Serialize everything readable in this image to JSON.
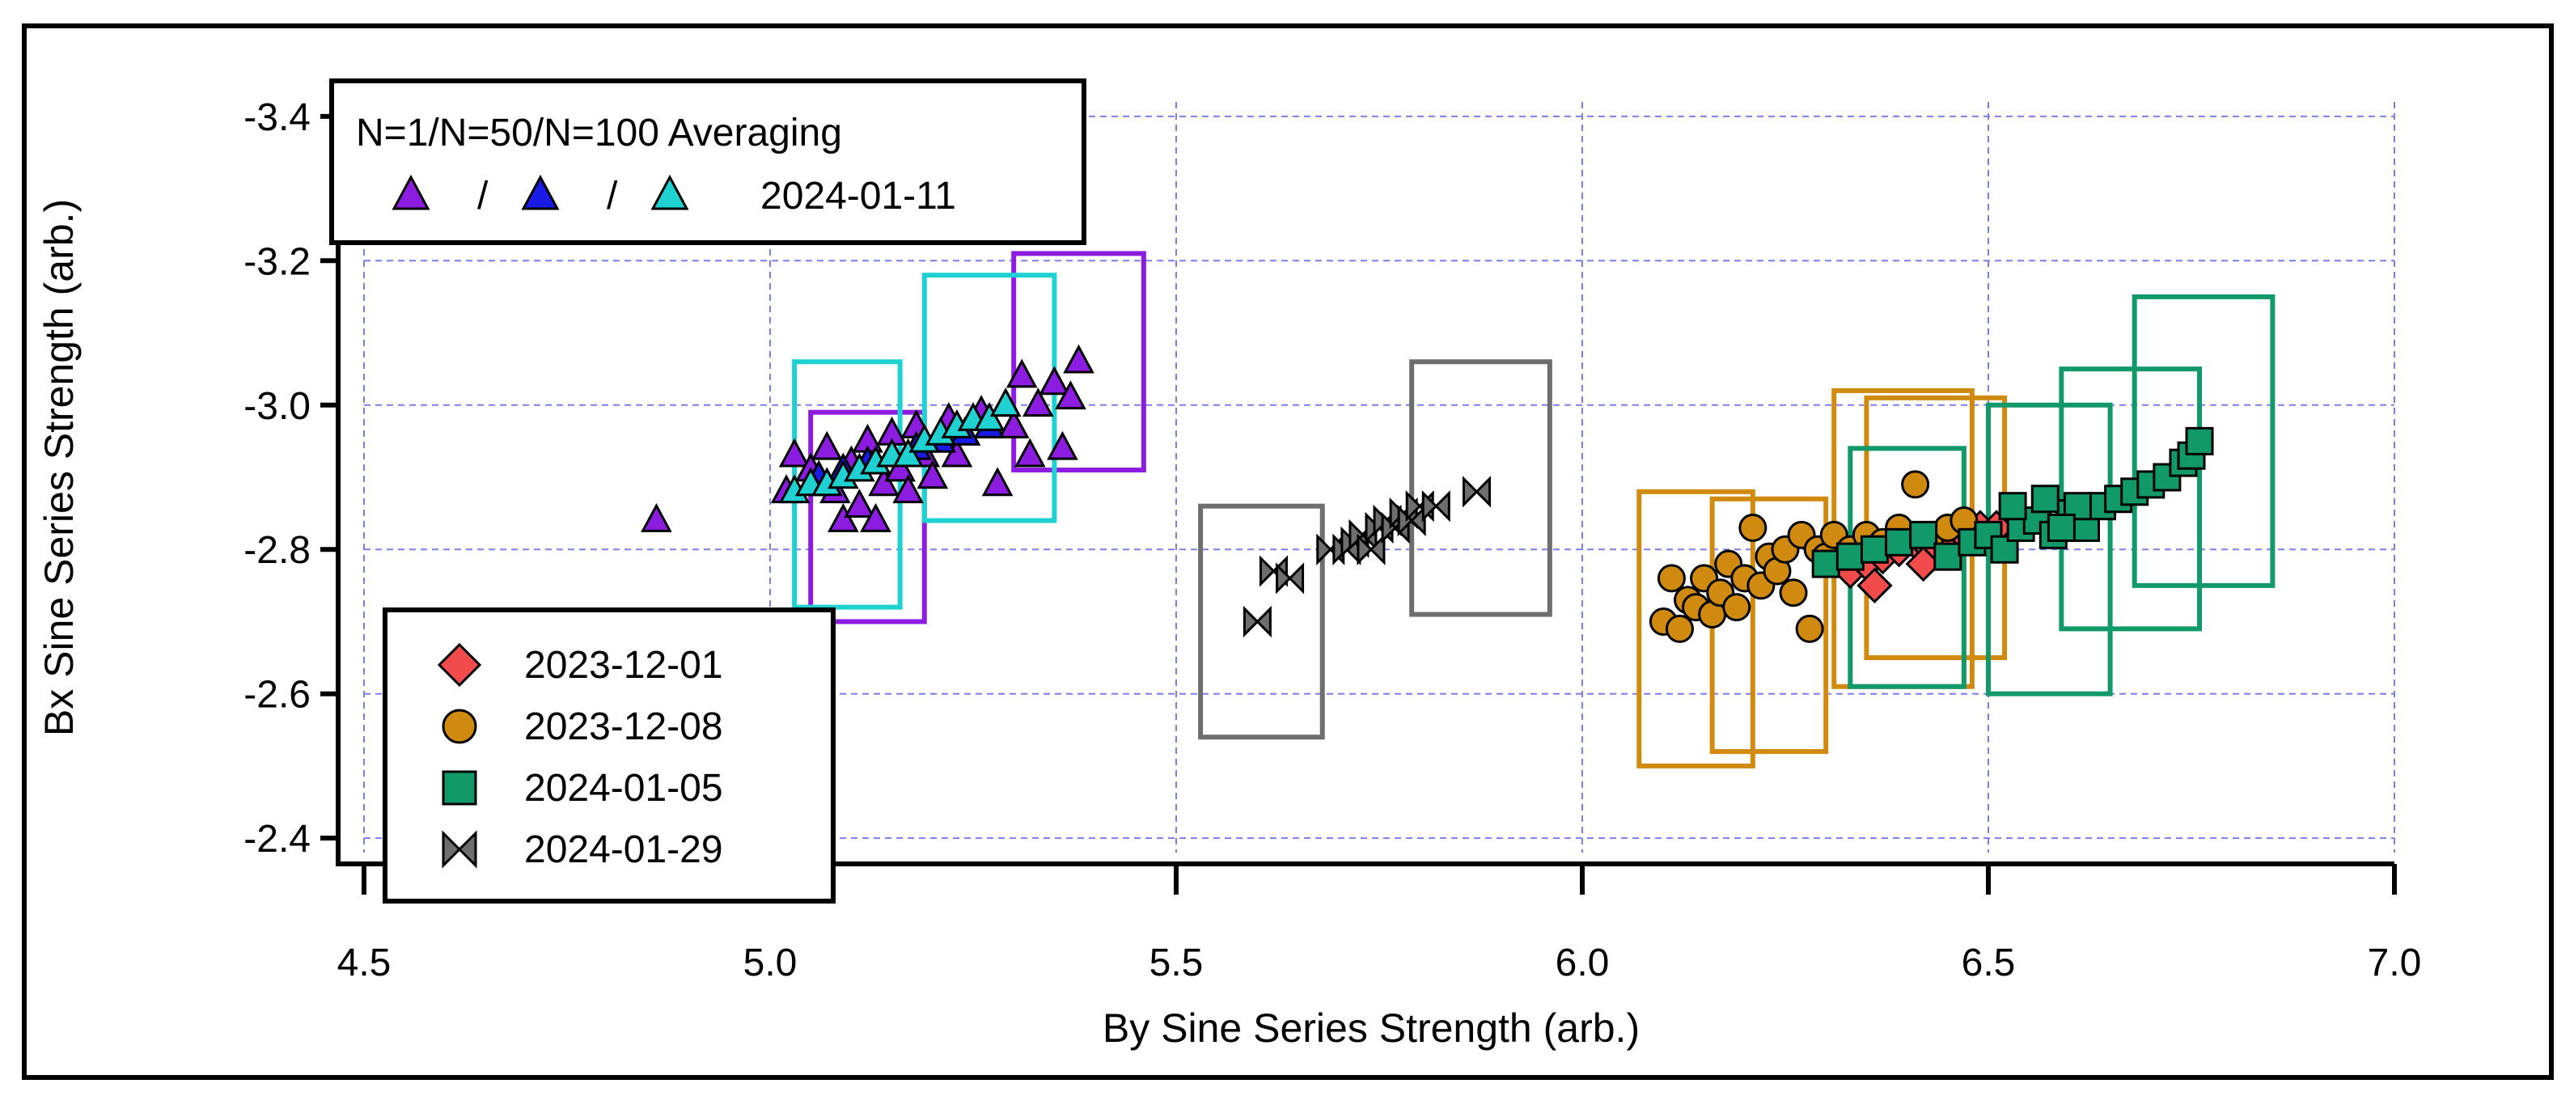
{
  "chart_data": {
    "type": "scatter",
    "title": "",
    "xlabel": "By Sine Series Strength (arb.)",
    "ylabel": "Bx Sine Series Strength (arb.)",
    "xlim": [
      4.5,
      7.0
    ],
    "ylim": [
      -2.38,
      -3.42
    ],
    "y_axis_reversed": true,
    "grid": true,
    "xticks": [
      4.5,
      5.0,
      5.5,
      6.0,
      6.5,
      7.0
    ],
    "xtick_labels": [
      "4.5",
      "5.0",
      "5.5",
      "6.0",
      "6.5",
      "7.0"
    ],
    "yticks": [
      -2.4,
      -2.6,
      -2.8,
      -3.0,
      -3.2,
      -3.4
    ],
    "ytick_labels": [
      "-2.4",
      "-2.6",
      "-2.8",
      "-3.0",
      "-3.2",
      "-3.4"
    ],
    "legend_top": {
      "title": "N=1/N=50/N=100 Averaging",
      "separator": "/",
      "label": "2024-01-11",
      "position": "top-left"
    },
    "legend_bottom": {
      "position": "bottom-left",
      "entries": [
        {
          "label": "2023-12-01",
          "series": "2023-12-01"
        },
        {
          "label": "2023-12-08",
          "series": "2023-12-08"
        },
        {
          "label": "2024-01-05",
          "series": "2024-01-05"
        },
        {
          "label": "2024-01-29",
          "series": "2024-01-29"
        }
      ]
    },
    "series": [
      {
        "name": "2024-01-11 N=1",
        "marker": "triangle",
        "color": "#8b1ce0",
        "points": [
          [
            4.86,
            -2.84
          ],
          [
            5.02,
            -2.88
          ],
          [
            5.03,
            -2.93
          ],
          [
            5.05,
            -2.91
          ],
          [
            5.06,
            -2.89
          ],
          [
            5.07,
            -2.94
          ],
          [
            5.08,
            -2.88
          ],
          [
            5.09,
            -2.84
          ],
          [
            5.1,
            -2.92
          ],
          [
            5.11,
            -2.86
          ],
          [
            5.12,
            -2.95
          ],
          [
            5.13,
            -2.84
          ],
          [
            5.14,
            -2.89
          ],
          [
            5.15,
            -2.96
          ],
          [
            5.16,
            -2.91
          ],
          [
            5.17,
            -2.88
          ],
          [
            5.18,
            -2.97
          ],
          [
            5.19,
            -2.93
          ],
          [
            5.2,
            -2.9
          ],
          [
            5.21,
            -2.95
          ],
          [
            5.22,
            -2.98
          ],
          [
            5.23,
            -2.93
          ],
          [
            5.24,
            -2.96
          ],
          [
            5.26,
            -2.99
          ],
          [
            5.27,
            -2.97
          ],
          [
            5.28,
            -2.89
          ],
          [
            5.29,
            -3.0
          ],
          [
            5.3,
            -2.97
          ],
          [
            5.32,
            -2.93
          ],
          [
            5.33,
            -3.0
          ],
          [
            5.35,
            -3.03
          ],
          [
            5.36,
            -2.94
          ],
          [
            5.38,
            -3.06
          ],
          [
            5.37,
            -3.01
          ],
          [
            5.31,
            -3.04
          ]
        ]
      },
      {
        "name": "2024-01-11 N=50",
        "marker": "triangle",
        "color": "#1a1ae6",
        "points": [
          [
            5.06,
            -2.9
          ],
          [
            5.09,
            -2.91
          ],
          [
            5.12,
            -2.92
          ],
          [
            5.15,
            -2.93
          ],
          [
            5.18,
            -2.94
          ],
          [
            5.21,
            -2.95
          ],
          [
            5.24,
            -2.96
          ],
          [
            5.27,
            -2.97
          ]
        ]
      },
      {
        "name": "2024-01-11 N=100",
        "marker": "triangle",
        "color": "#1fd1d1",
        "points": [
          [
            5.03,
            -2.88
          ],
          [
            5.05,
            -2.89
          ],
          [
            5.07,
            -2.89
          ],
          [
            5.09,
            -2.9
          ],
          [
            5.11,
            -2.91
          ],
          [
            5.13,
            -2.92
          ],
          [
            5.15,
            -2.93
          ],
          [
            5.17,
            -2.93
          ],
          [
            5.19,
            -2.95
          ],
          [
            5.21,
            -2.96
          ],
          [
            5.23,
            -2.97
          ],
          [
            5.25,
            -2.98
          ],
          [
            5.27,
            -2.98
          ],
          [
            5.29,
            -3.0
          ]
        ]
      },
      {
        "name": "2023-12-01",
        "marker": "diamond",
        "color": "#f24b4b",
        "points": [
          [
            6.33,
            -2.77
          ],
          [
            6.35,
            -2.78
          ],
          [
            6.37,
            -2.79
          ],
          [
            6.39,
            -2.8
          ],
          [
            6.41,
            -2.81
          ],
          [
            6.43,
            -2.8
          ],
          [
            6.45,
            -2.82
          ],
          [
            6.47,
            -2.82
          ],
          [
            6.49,
            -2.83
          ],
          [
            6.51,
            -2.83
          ],
          [
            6.36,
            -2.75
          ],
          [
            6.42,
            -2.78
          ]
        ]
      },
      {
        "name": "2023-12-08",
        "marker": "circle",
        "color": "#d08a10",
        "points": [
          [
            6.1,
            -2.7
          ],
          [
            6.11,
            -2.76
          ],
          [
            6.12,
            -2.69
          ],
          [
            6.13,
            -2.73
          ],
          [
            6.14,
            -2.72
          ],
          [
            6.15,
            -2.76
          ],
          [
            6.16,
            -2.71
          ],
          [
            6.17,
            -2.74
          ],
          [
            6.18,
            -2.78
          ],
          [
            6.19,
            -2.72
          ],
          [
            6.2,
            -2.76
          ],
          [
            6.21,
            -2.83
          ],
          [
            6.22,
            -2.75
          ],
          [
            6.23,
            -2.79
          ],
          [
            6.24,
            -2.77
          ],
          [
            6.25,
            -2.8
          ],
          [
            6.26,
            -2.74
          ],
          [
            6.27,
            -2.82
          ],
          [
            6.28,
            -2.69
          ],
          [
            6.29,
            -2.8
          ],
          [
            6.3,
            -2.79
          ],
          [
            6.31,
            -2.82
          ],
          [
            6.33,
            -2.8
          ],
          [
            6.35,
            -2.82
          ],
          [
            6.37,
            -2.81
          ],
          [
            6.39,
            -2.83
          ],
          [
            6.41,
            -2.89
          ],
          [
            6.43,
            -2.82
          ],
          [
            6.45,
            -2.83
          ],
          [
            6.47,
            -2.84
          ]
        ]
      },
      {
        "name": "2024-01-05",
        "marker": "square",
        "color": "#12996a",
        "points": [
          [
            6.3,
            -2.78
          ],
          [
            6.33,
            -2.79
          ],
          [
            6.36,
            -2.8
          ],
          [
            6.39,
            -2.81
          ],
          [
            6.42,
            -2.82
          ],
          [
            6.45,
            -2.79
          ],
          [
            6.48,
            -2.81
          ],
          [
            6.5,
            -2.82
          ],
          [
            6.52,
            -2.8
          ],
          [
            6.54,
            -2.83
          ],
          [
            6.56,
            -2.84
          ],
          [
            6.58,
            -2.82
          ],
          [
            6.6,
            -2.85
          ],
          [
            6.62,
            -2.83
          ],
          [
            6.64,
            -2.86
          ],
          [
            6.66,
            -2.87
          ],
          [
            6.68,
            -2.88
          ],
          [
            6.7,
            -2.89
          ],
          [
            6.72,
            -2.9
          ],
          [
            6.74,
            -2.92
          ],
          [
            6.75,
            -2.93
          ],
          [
            6.76,
            -2.95
          ],
          [
            6.53,
            -2.86
          ],
          [
            6.57,
            -2.87
          ],
          [
            6.61,
            -2.86
          ],
          [
            6.59,
            -2.83
          ]
        ]
      },
      {
        "name": "2024-01-29",
        "marker": "bowtie",
        "color": "#6e6e6e",
        "points": [
          [
            5.6,
            -2.7
          ],
          [
            5.62,
            -2.77
          ],
          [
            5.64,
            -2.76
          ],
          [
            5.69,
            -2.8
          ],
          [
            5.71,
            -2.8
          ],
          [
            5.72,
            -2.81
          ],
          [
            5.73,
            -2.82
          ],
          [
            5.74,
            -2.8
          ],
          [
            5.75,
            -2.83
          ],
          [
            5.76,
            -2.84
          ],
          [
            5.77,
            -2.83
          ],
          [
            5.78,
            -2.85
          ],
          [
            5.79,
            -2.84
          ],
          [
            5.8,
            -2.86
          ],
          [
            5.82,
            -2.86
          ],
          [
            5.87,
            -2.88
          ]
        ]
      }
    ],
    "boxes": [
      {
        "color": "#8b1ce0",
        "x": [
          5.05,
          5.19
        ],
        "y": [
          -2.7,
          -2.99
        ]
      },
      {
        "color": "#8b1ce0",
        "x": [
          5.3,
          5.46
        ],
        "y": [
          -2.91,
          -3.21
        ]
      },
      {
        "color": "#1fd1d1",
        "x": [
          5.03,
          5.16
        ],
        "y": [
          -2.72,
          -3.06
        ]
      },
      {
        "color": "#1fd1d1",
        "x": [
          5.19,
          5.35
        ],
        "y": [
          -2.84,
          -3.18
        ]
      },
      {
        "color": "#6e6e6e",
        "x": [
          5.53,
          5.68
        ],
        "y": [
          -2.54,
          -2.86
        ]
      },
      {
        "color": "#6e6e6e",
        "x": [
          5.79,
          5.96
        ],
        "y": [
          -2.71,
          -3.06
        ]
      },
      {
        "color": "#d08a10",
        "x": [
          6.07,
          6.21
        ],
        "y": [
          -2.5,
          -2.88
        ]
      },
      {
        "color": "#d08a10",
        "x": [
          6.16,
          6.3
        ],
        "y": [
          -2.52,
          -2.87
        ]
      },
      {
        "color": "#d08a10",
        "x": [
          6.31,
          6.48
        ],
        "y": [
          -2.61,
          -3.02
        ]
      },
      {
        "color": "#d08a10",
        "x": [
          6.35,
          6.52
        ],
        "y": [
          -2.65,
          -3.01
        ]
      },
      {
        "color": "#12996a",
        "x": [
          6.33,
          6.47
        ],
        "y": [
          -2.61,
          -2.94
        ]
      },
      {
        "color": "#12996a",
        "x": [
          6.5,
          6.65
        ],
        "y": [
          -2.6,
          -3.0
        ]
      },
      {
        "color": "#12996a",
        "x": [
          6.59,
          6.76
        ],
        "y": [
          -2.69,
          -3.05
        ]
      },
      {
        "color": "#12996a",
        "x": [
          6.68,
          6.85
        ],
        "y": [
          -2.75,
          -3.15
        ]
      }
    ]
  }
}
